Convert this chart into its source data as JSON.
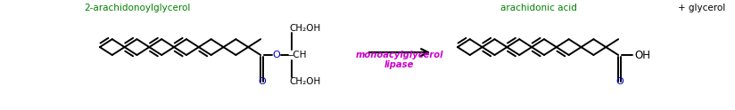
{
  "bg_color": "#ffffff",
  "label_2ag": "2-arachidonoylglycerol",
  "label_2ag_color": "#008000",
  "label_ara": "arachidonic acid",
  "label_ara_color": "#008000",
  "label_glycerol": "+ glycerol",
  "label_glycerol_color": "#000000",
  "enzyme_line1": "monoacylglycerol",
  "enzyme_line2": "lipase",
  "enzyme_color": "#cc00cc",
  "line_color": "#000000",
  "o_color": "#0000bb",
  "arrow_color": "#000000",
  "ch2oh_top": "CH₂OH",
  "ch_mid": "—CH",
  "ch2oh_bot": "CH₂OH",
  "oh_label": "OH"
}
